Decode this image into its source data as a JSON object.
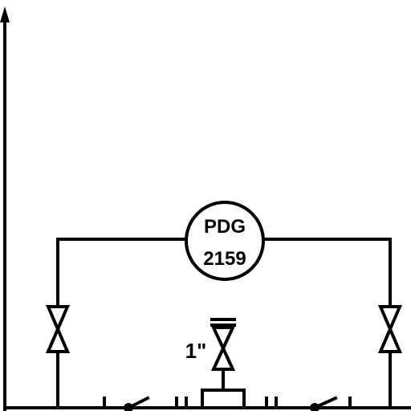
{
  "instrument": {
    "type_label": "PDG",
    "number_label": "2159"
  },
  "valves": {
    "center_size_label": "1\""
  },
  "colors": {
    "line": "#000000",
    "background": "#ffffff"
  }
}
